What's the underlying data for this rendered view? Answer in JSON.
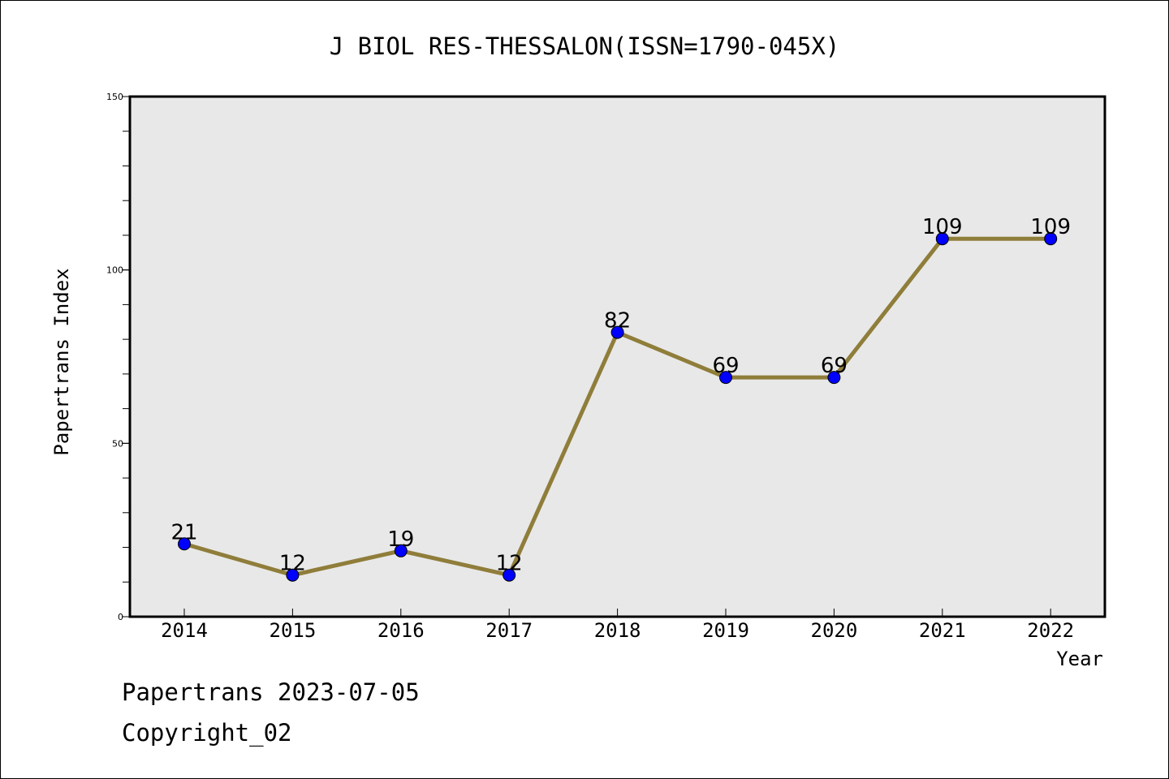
{
  "chart_data": {
    "type": "line",
    "title": "J BIOL RES-THESSALON(ISSN=1790-045X)",
    "xlabel": "Year",
    "ylabel": "Papertrans Index",
    "x": [
      "2014",
      "2015",
      "2016",
      "2017",
      "2018",
      "2019",
      "2020",
      "2021",
      "2022"
    ],
    "values": [
      21,
      12,
      19,
      12,
      82,
      69,
      69,
      109,
      109
    ],
    "data_labels": [
      "21",
      "12",
      "19",
      "12",
      "82",
      "69",
      "69",
      "109",
      "109"
    ],
    "yticks": [
      "0",
      "50",
      "100",
      "150"
    ],
    "ylim": [
      0,
      150
    ],
    "grid": false,
    "colors": {
      "line": "#8f7d3a",
      "marker": "#0000ff",
      "plot_bg": "#e8e8e8"
    }
  },
  "footer": {
    "date_line": "Papertrans 2023-07-05",
    "copyright": "Copyright_02"
  }
}
